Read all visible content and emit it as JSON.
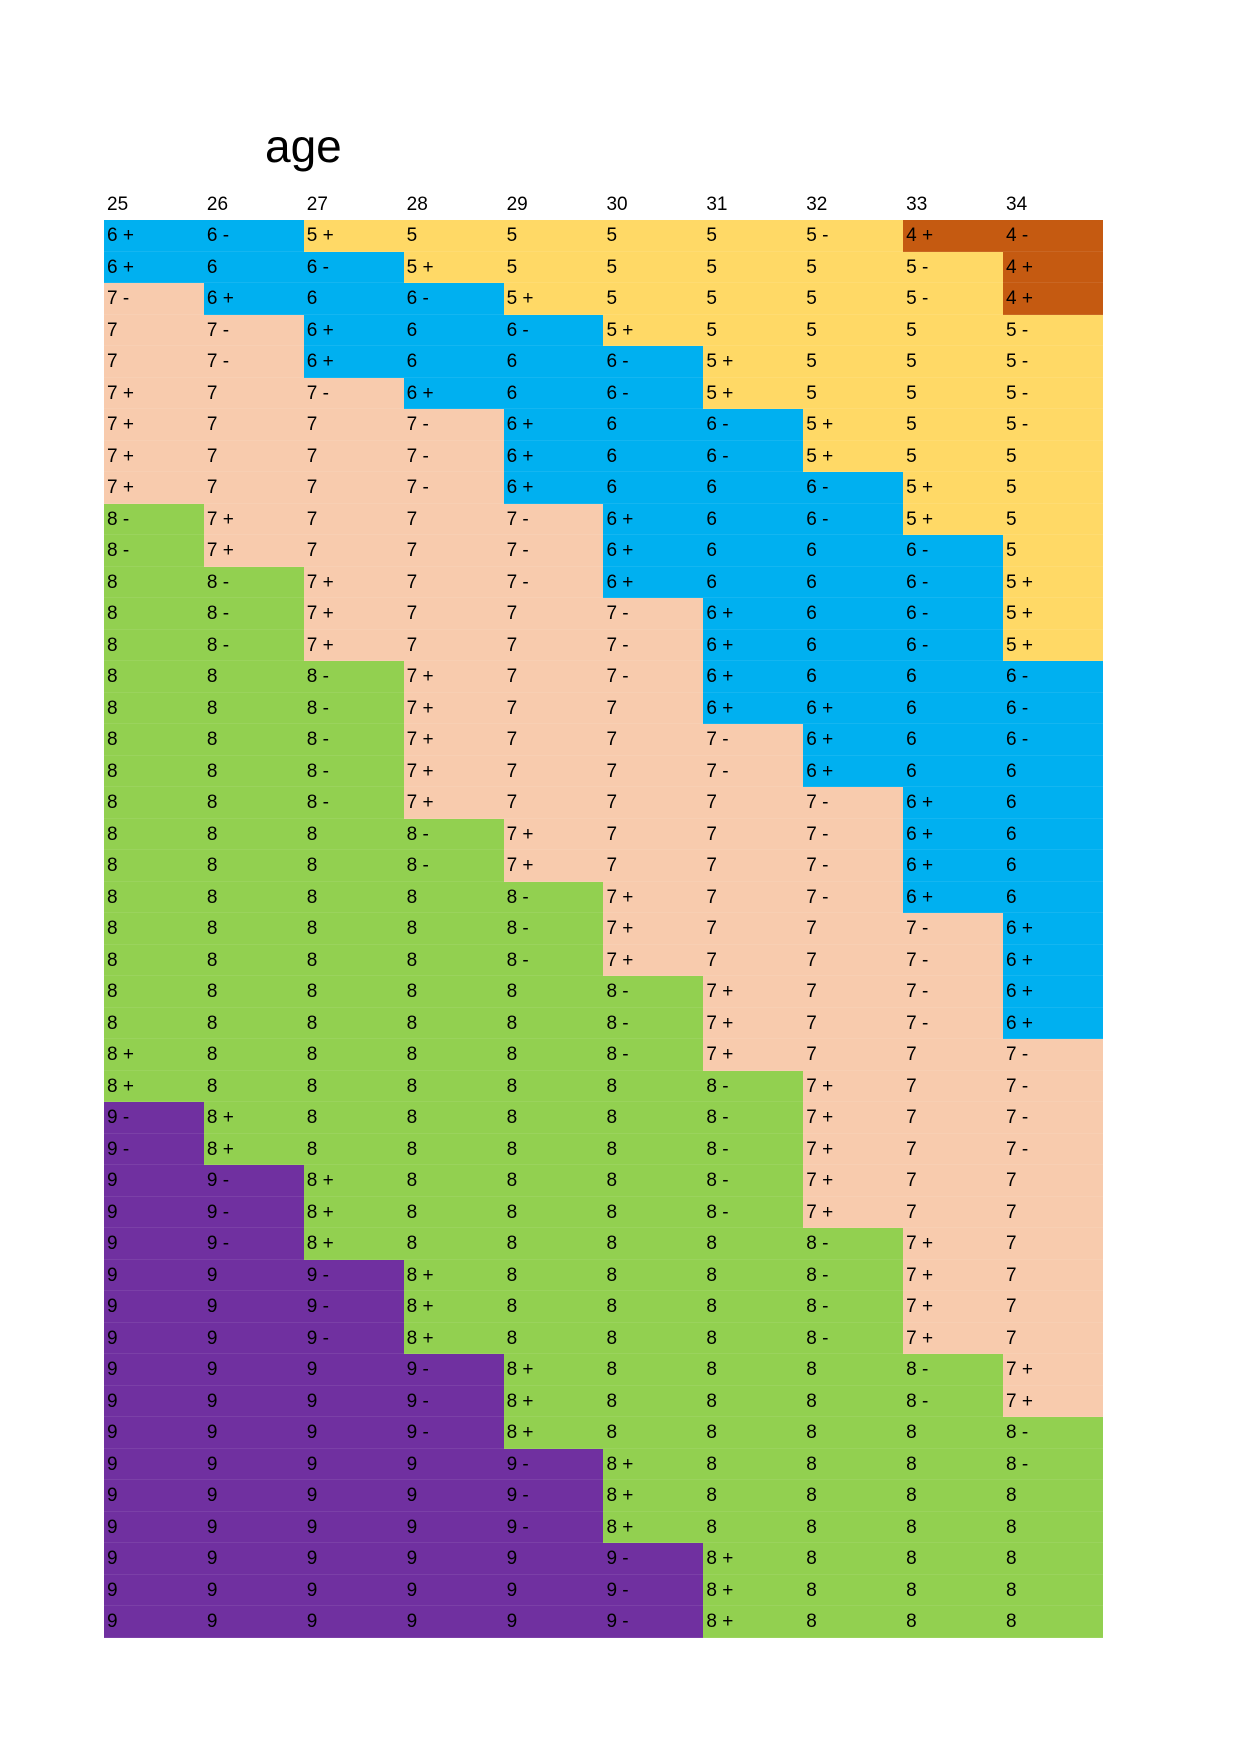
{
  "title": "age",
  "columns": [
    "25",
    "26",
    "27",
    "28",
    "29",
    "30",
    "31",
    "32",
    "33",
    "34"
  ],
  "grade_colors": {
    "4": "#C55A11",
    "5": "#FFD966",
    "6": "#00B0F0",
    "7": "#F8CBAD",
    "8": "#92D050",
    "9": "#7030A0"
  },
  "rows": [
    [
      "6 +",
      "6 -",
      "5 +",
      "5",
      "5",
      "5",
      "5",
      "5 -",
      "4 +",
      "4 -"
    ],
    [
      "6 +",
      "6",
      "6 -",
      "5 +",
      "5",
      "5",
      "5",
      "5",
      "5 -",
      "4 +"
    ],
    [
      "7 -",
      "6 +",
      "6",
      "6 -",
      "5 +",
      "5",
      "5",
      "5",
      "5 -",
      "4 +"
    ],
    [
      "7",
      "7 -",
      "6 +",
      "6",
      "6 -",
      "5 +",
      "5",
      "5",
      "5",
      "5 -"
    ],
    [
      "7",
      "7 -",
      "6 +",
      "6",
      "6",
      "6 -",
      "5 +",
      "5",
      "5",
      "5 -"
    ],
    [
      "7 +",
      "7",
      "7 -",
      "6 +",
      "6",
      "6 -",
      "5 +",
      "5",
      "5",
      "5 -"
    ],
    [
      "7 +",
      "7",
      "7",
      "7 -",
      "6 +",
      "6",
      "6 -",
      "5 +",
      "5",
      "5 -"
    ],
    [
      "7 +",
      "7",
      "7",
      "7 -",
      "6 +",
      "6",
      "6 -",
      "5 +",
      "5",
      "5"
    ],
    [
      "7 +",
      "7",
      "7",
      "7 -",
      "6 +",
      "6",
      "6",
      "6 -",
      "5 +",
      "5"
    ],
    [
      "8 -",
      "7 +",
      "7",
      "7",
      "7 -",
      "6 +",
      "6",
      "6 -",
      "5 +",
      "5"
    ],
    [
      "8 -",
      "7 +",
      "7",
      "7",
      "7 -",
      "6 +",
      "6",
      "6",
      "6 -",
      "5"
    ],
    [
      "8",
      "8 -",
      "7 +",
      "7",
      "7 -",
      "6 +",
      "6",
      "6",
      "6 -",
      "5 +"
    ],
    [
      "8",
      "8 -",
      "7 +",
      "7",
      "7",
      "7 -",
      "6 +",
      "6",
      "6 -",
      "5 +"
    ],
    [
      "8",
      "8 -",
      "7 +",
      "7",
      "7",
      "7 -",
      "6 +",
      "6",
      "6 -",
      "5 +"
    ],
    [
      "8",
      "8",
      "8 -",
      "7 +",
      "7",
      "7 -",
      "6 +",
      "6",
      "6",
      "6 -"
    ],
    [
      "8",
      "8",
      "8 -",
      "7 +",
      "7",
      "7",
      "6 +",
      "6 +",
      "6",
      "6 -"
    ],
    [
      "8",
      "8",
      "8 -",
      "7 +",
      "7",
      "7",
      "7 -",
      "6 +",
      "6",
      "6 -"
    ],
    [
      "8",
      "8",
      "8 -",
      "7 +",
      "7",
      "7",
      "7 -",
      "6 +",
      "6",
      "6"
    ],
    [
      "8",
      "8",
      "8 -",
      "7 +",
      "7",
      "7",
      "7",
      "7 -",
      "6 +",
      "6"
    ],
    [
      "8",
      "8",
      "8",
      "8 -",
      "7 +",
      "7",
      "7",
      "7 -",
      "6 +",
      "6"
    ],
    [
      "8",
      "8",
      "8",
      "8 -",
      "7 +",
      "7",
      "7",
      "7 -",
      "6 +",
      "6"
    ],
    [
      "8",
      "8",
      "8",
      "8",
      "8 -",
      "7 +",
      "7",
      "7 -",
      "6 +",
      "6"
    ],
    [
      "8",
      "8",
      "8",
      "8",
      "8 -",
      "7 +",
      "7",
      "7",
      "7 -",
      "6 +"
    ],
    [
      "8",
      "8",
      "8",
      "8",
      "8 -",
      "7 +",
      "7",
      "7",
      "7 -",
      "6 +"
    ],
    [
      "8",
      "8",
      "8",
      "8",
      "8",
      "8 -",
      "7 +",
      "7",
      "7 -",
      "6 +"
    ],
    [
      "8",
      "8",
      "8",
      "8",
      "8",
      "8 -",
      "7 +",
      "7",
      "7 -",
      "6 +"
    ],
    [
      "8 +",
      "8",
      "8",
      "8",
      "8",
      "8 -",
      "7 +",
      "7",
      "7",
      "7 -"
    ],
    [
      "8 +",
      "8",
      "8",
      "8",
      "8",
      "8",
      "8 -",
      "7 +",
      "7",
      "7 -"
    ],
    [
      "9 -",
      "8 +",
      "8",
      "8",
      "8",
      "8",
      "8 -",
      "7 +",
      "7",
      "7 -"
    ],
    [
      "9 -",
      "8 +",
      "8",
      "8",
      "8",
      "8",
      "8 -",
      "7 +",
      "7",
      "7 -"
    ],
    [
      "9",
      "9 -",
      "8 +",
      "8",
      "8",
      "8",
      "8 -",
      "7 +",
      "7",
      "7"
    ],
    [
      "9",
      "9 -",
      "8 +",
      "8",
      "8",
      "8",
      "8 -",
      "7 +",
      "7",
      "7"
    ],
    [
      "9",
      "9 -",
      "8 +",
      "8",
      "8",
      "8",
      "8",
      "8 -",
      "7 +",
      "7"
    ],
    [
      "9",
      "9",
      "9 -",
      "8 +",
      "8",
      "8",
      "8",
      "8 -",
      "7 +",
      "7"
    ],
    [
      "9",
      "9",
      "9 -",
      "8 +",
      "8",
      "8",
      "8",
      "8 -",
      "7 +",
      "7"
    ],
    [
      "9",
      "9",
      "9 -",
      "8 +",
      "8",
      "8",
      "8",
      "8 -",
      "7 +",
      "7"
    ],
    [
      "9",
      "9",
      "9",
      "9 -",
      "8 +",
      "8",
      "8",
      "8",
      "8 -",
      "7 +"
    ],
    [
      "9",
      "9",
      "9",
      "9 -",
      "8 +",
      "8",
      "8",
      "8",
      "8 -",
      "7 +"
    ],
    [
      "9",
      "9",
      "9",
      "9 -",
      "8 +",
      "8",
      "8",
      "8",
      "8",
      "8 -"
    ],
    [
      "9",
      "9",
      "9",
      "9",
      "9 -",
      "8 +",
      "8",
      "8",
      "8",
      "8 -"
    ],
    [
      "9",
      "9",
      "9",
      "9",
      "9 -",
      "8 +",
      "8",
      "8",
      "8",
      "8"
    ],
    [
      "9",
      "9",
      "9",
      "9",
      "9 -",
      "8 +",
      "8",
      "8",
      "8",
      "8"
    ],
    [
      "9",
      "9",
      "9",
      "9",
      "9",
      "9 -",
      "8 +",
      "8",
      "8",
      "8"
    ],
    [
      "9",
      "9",
      "9",
      "9",
      "9",
      "9 -",
      "8 +",
      "8",
      "8",
      "8"
    ],
    [
      "9",
      "9",
      "9",
      "9",
      "9",
      "9 -",
      "8 +",
      "8",
      "8",
      "8"
    ]
  ]
}
